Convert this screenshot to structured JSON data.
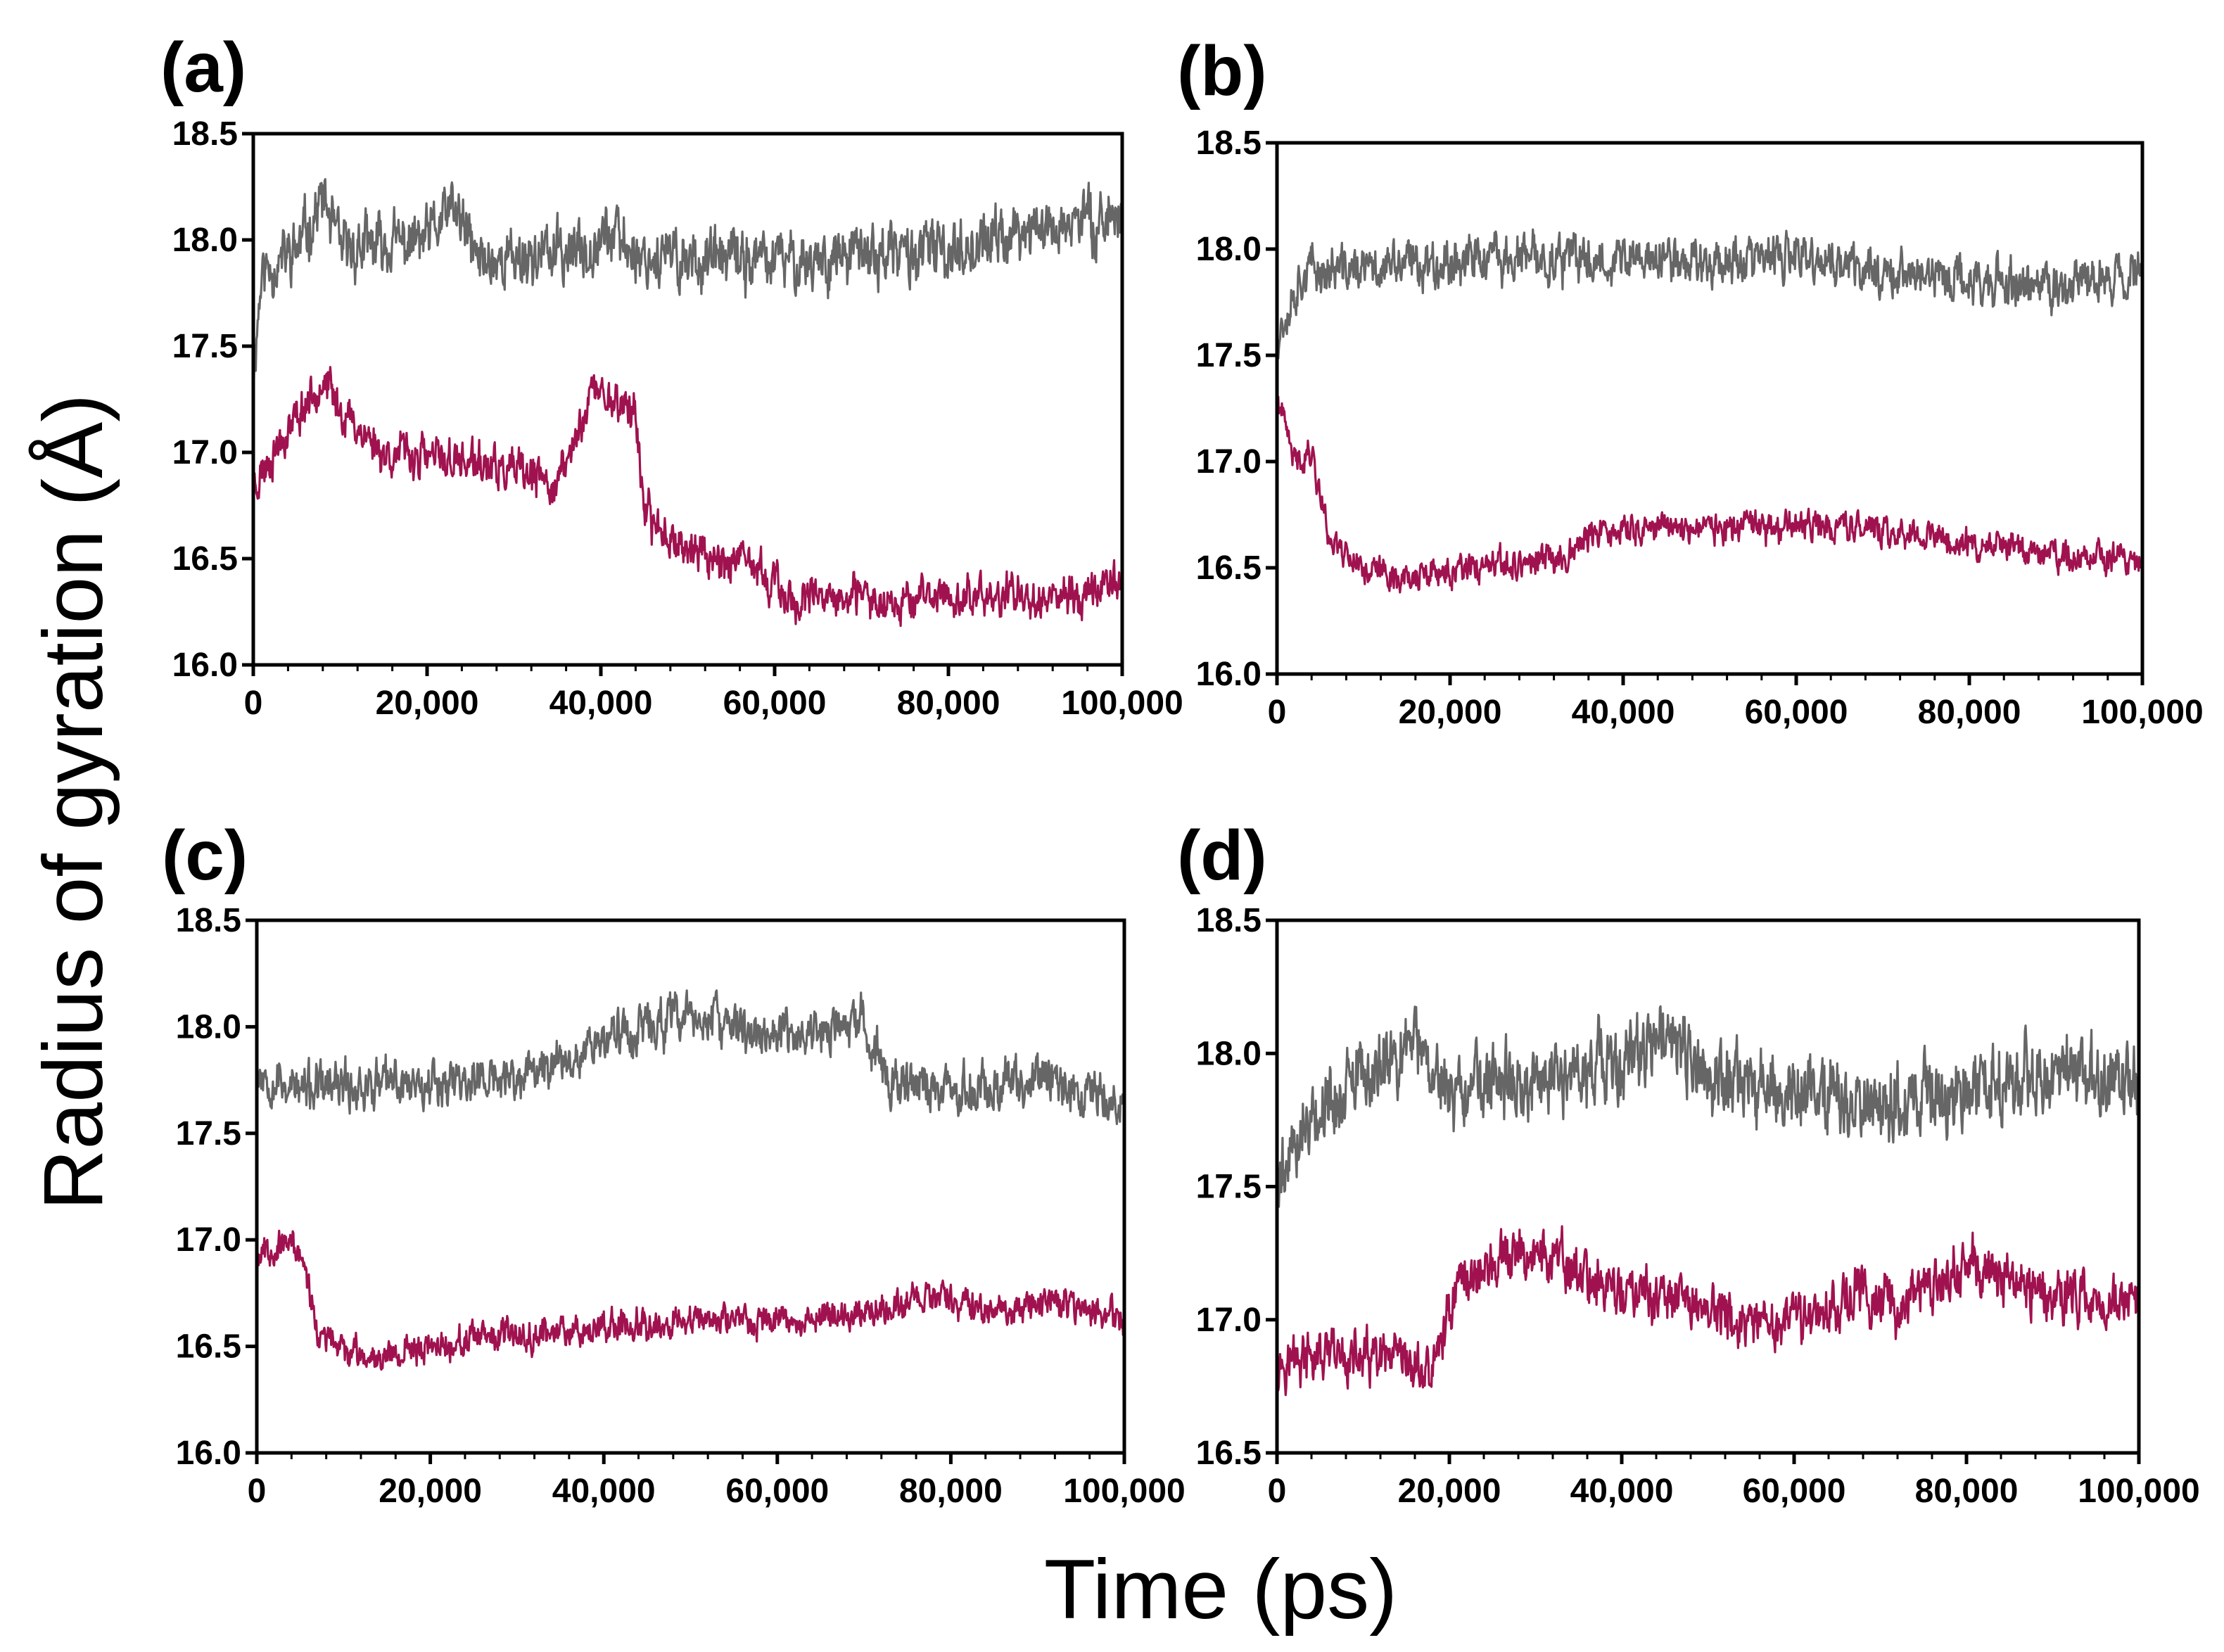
{
  "figure": {
    "xlabel": "Time (ps)",
    "ylabel": "Radius of gyration (Å)"
  },
  "colors": {
    "upper_series": "#666666",
    "lower_series": "#a0124f"
  },
  "chart_data": [
    {
      "type": "line",
      "panel": "(a)",
      "xlim": [
        0,
        100000
      ],
      "ylim": [
        16.0,
        18.5
      ],
      "xticks": [
        "0",
        "20,000",
        "40,000",
        "60,000",
        "80,000",
        "100,000"
      ],
      "yticks": [
        "16.0",
        "16.5",
        "17.0",
        "17.5",
        "18.0",
        "18.5"
      ],
      "series": [
        {
          "name": "upper",
          "color": "#666666",
          "noise": 0.1,
          "seed": 11,
          "keypoints": [
            [
              0,
              17.4
            ],
            [
              1000,
              17.85
            ],
            [
              5000,
              17.95
            ],
            [
              8000,
              18.2
            ],
            [
              10000,
              17.95
            ],
            [
              20000,
              18.0
            ],
            [
              23000,
              18.15
            ],
            [
              26000,
              17.9
            ],
            [
              38000,
              17.95
            ],
            [
              40000,
              18.05
            ],
            [
              45000,
              17.92
            ],
            [
              60000,
              17.9
            ],
            [
              80000,
              17.95
            ],
            [
              90000,
              18.05
            ],
            [
              100000,
              18.12
            ]
          ]
        },
        {
          "name": "lower",
          "color": "#a0124f",
          "noise": 0.07,
          "seed": 23,
          "keypoints": [
            [
              0,
              16.85
            ],
            [
              3000,
              17.05
            ],
            [
              8000,
              17.35
            ],
            [
              10000,
              17.2
            ],
            [
              15000,
              17.0
            ],
            [
              25000,
              16.95
            ],
            [
              35000,
              16.85
            ],
            [
              37000,
              17.05
            ],
            [
              39000,
              17.3
            ],
            [
              44000,
              17.2
            ],
            [
              45000,
              16.7
            ],
            [
              50000,
              16.55
            ],
            [
              58000,
              16.45
            ],
            [
              62000,
              16.3
            ],
            [
              80000,
              16.32
            ],
            [
              95000,
              16.33
            ],
            [
              100000,
              16.4
            ]
          ]
        }
      ]
    },
    {
      "type": "line",
      "panel": "(b)",
      "xlim": [
        0,
        100000
      ],
      "ylim": [
        16.0,
        18.5
      ],
      "xticks": [
        "0",
        "20,000",
        "40,000",
        "60,000",
        "80,000",
        "100,000"
      ],
      "yticks": [
        "16.0",
        "16.5",
        "17.0",
        "17.5",
        "18.0",
        "18.5"
      ],
      "series": [
        {
          "name": "upper",
          "color": "#666666",
          "noise": 0.08,
          "seed": 37,
          "keypoints": [
            [
              0,
              17.6
            ],
            [
              3000,
              17.9
            ],
            [
              10000,
              17.9
            ],
            [
              20000,
              17.95
            ],
            [
              30000,
              17.95
            ],
            [
              40000,
              17.95
            ],
            [
              50000,
              17.95
            ],
            [
              60000,
              17.95
            ],
            [
              70000,
              17.9
            ],
            [
              80000,
              17.85
            ],
            [
              90000,
              17.82
            ],
            [
              100000,
              17.9
            ]
          ]
        },
        {
          "name": "lower",
          "color": "#a0124f",
          "noise": 0.05,
          "seed": 41,
          "keypoints": [
            [
              0,
              17.3
            ],
            [
              2000,
              17.0
            ],
            [
              4000,
              17.05
            ],
            [
              6000,
              16.65
            ],
            [
              10000,
              16.5
            ],
            [
              15000,
              16.45
            ],
            [
              25000,
              16.5
            ],
            [
              33000,
              16.55
            ],
            [
              36000,
              16.65
            ],
            [
              45000,
              16.7
            ],
            [
              55000,
              16.68
            ],
            [
              65000,
              16.7
            ],
            [
              75000,
              16.65
            ],
            [
              85000,
              16.58
            ],
            [
              100000,
              16.52
            ]
          ]
        }
      ]
    },
    {
      "type": "line",
      "panel": "(c)",
      "xlim": [
        0,
        100000
      ],
      "ylim": [
        16.0,
        18.5
      ],
      "xticks": [
        "0",
        "20,000",
        "40,000",
        "60,000",
        "80,000",
        "100,000"
      ],
      "yticks": [
        "16.0",
        "16.5",
        "17.0",
        "17.5",
        "18.0",
        "18.5"
      ],
      "series": [
        {
          "name": "upper",
          "color": "#666666",
          "noise": 0.08,
          "seed": 53,
          "keypoints": [
            [
              0,
              17.8
            ],
            [
              5000,
              17.7
            ],
            [
              20000,
              17.75
            ],
            [
              30000,
              17.75
            ],
            [
              40000,
              17.95
            ],
            [
              50000,
              18.05
            ],
            [
              60000,
              17.95
            ],
            [
              70000,
              18.0
            ],
            [
              73000,
              17.75
            ],
            [
              80000,
              17.7
            ],
            [
              90000,
              17.75
            ],
            [
              100000,
              17.65
            ]
          ]
        },
        {
          "name": "lower",
          "color": "#a0124f",
          "noise": 0.05,
          "seed": 67,
          "keypoints": [
            [
              0,
              16.95
            ],
            [
              4000,
              16.98
            ],
            [
              5500,
              16.9
            ],
            [
              7000,
              16.55
            ],
            [
              12000,
              16.45
            ],
            [
              20000,
              16.5
            ],
            [
              30000,
              16.55
            ],
            [
              40000,
              16.6
            ],
            [
              50000,
              16.62
            ],
            [
              60000,
              16.62
            ],
            [
              70000,
              16.65
            ],
            [
              78000,
              16.75
            ],
            [
              85000,
              16.65
            ],
            [
              92000,
              16.72
            ],
            [
              100000,
              16.62
            ]
          ]
        }
      ]
    },
    {
      "type": "line",
      "panel": "(d)",
      "xlim": [
        0,
        100000
      ],
      "ylim": [
        16.5,
        18.5
      ],
      "xticks": [
        "0",
        "20,000",
        "40,000",
        "60,000",
        "80,000",
        "100,000"
      ],
      "yticks": [
        "16.5",
        "17.0",
        "17.5",
        "18.0",
        "18.5"
      ],
      "series": [
        {
          "name": "upper",
          "color": "#666666",
          "noise": 0.1,
          "seed": 79,
          "keypoints": [
            [
              0,
              17.5
            ],
            [
              3000,
              17.75
            ],
            [
              10000,
              17.9
            ],
            [
              16000,
              18.05
            ],
            [
              20000,
              17.85
            ],
            [
              30000,
              17.9
            ],
            [
              40000,
              17.95
            ],
            [
              45000,
              18.05
            ],
            [
              50000,
              17.9
            ],
            [
              60000,
              17.85
            ],
            [
              70000,
              17.82
            ],
            [
              80000,
              17.85
            ],
            [
              90000,
              17.95
            ],
            [
              100000,
              17.85
            ]
          ]
        },
        {
          "name": "lower",
          "color": "#a0124f",
          "noise": 0.07,
          "seed": 97,
          "keypoints": [
            [
              0,
              16.85
            ],
            [
              10000,
              16.85
            ],
            [
              18000,
              16.8
            ],
            [
              21000,
              17.15
            ],
            [
              25000,
              17.2
            ],
            [
              30000,
              17.25
            ],
            [
              40000,
              17.1
            ],
            [
              50000,
              17.05
            ],
            [
              55000,
              16.95
            ],
            [
              60000,
              17.0
            ],
            [
              68000,
              17.1
            ],
            [
              72000,
              17.05
            ],
            [
              80000,
              17.2
            ],
            [
              85000,
              17.15
            ],
            [
              90000,
              17.1
            ],
            [
              100000,
              17.05
            ]
          ]
        }
      ]
    }
  ]
}
